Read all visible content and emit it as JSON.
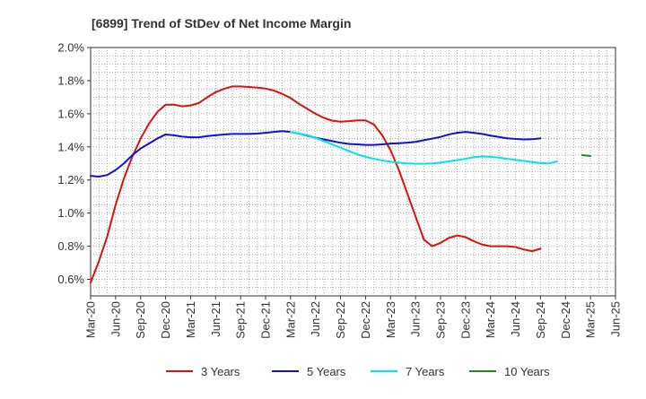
{
  "chart_data": {
    "type": "line",
    "title": "[6899]  Trend of StDev of Net Income Margin",
    "xlabel": "",
    "ylabel": "",
    "ylim": [
      0.5,
      2.0
    ],
    "y_ticks": [
      "2.0%",
      "1.8%",
      "1.6%",
      "1.4%",
      "1.2%",
      "1.0%",
      "0.8%",
      "0.6%"
    ],
    "y_tick_values": [
      2.0,
      1.8,
      1.6,
      1.4,
      1.2,
      1.0,
      0.8,
      0.6
    ],
    "x_tick_labels": [
      "Mar-20",
      "Jun-20",
      "Sep-20",
      "Dec-20",
      "Mar-21",
      "Jun-21",
      "Sep-21",
      "Dec-21",
      "Mar-22",
      "Jun-22",
      "Sep-22",
      "Dec-22",
      "Mar-23",
      "Jun-23",
      "Sep-23",
      "Dec-23",
      "Mar-24",
      "Jun-24",
      "Sep-24",
      "Dec-24",
      "Mar-25",
      "Jun-25"
    ],
    "x_unit": "month",
    "x_start": "2020-03",
    "grid": true,
    "legend_position": "bottom",
    "series": [
      {
        "name": "3 Years",
        "color": "#dd1111",
        "start": "2020-03",
        "values": [
          0.58,
          0.71,
          0.86,
          1.05,
          1.21,
          1.34,
          1.45,
          1.54,
          1.61,
          1.655,
          1.655,
          1.645,
          1.65,
          1.665,
          1.7,
          1.73,
          1.75,
          1.765,
          1.765,
          1.762,
          1.758,
          1.752,
          1.74,
          1.72,
          1.695,
          1.66,
          1.63,
          1.6,
          1.575,
          1.558,
          1.552,
          1.555,
          1.56,
          1.56,
          1.535,
          1.47,
          1.38,
          1.26,
          1.12,
          0.98,
          0.84,
          0.8,
          0.82,
          0.85,
          0.865,
          0.855,
          0.83,
          0.81,
          0.8,
          0.8,
          0.8,
          0.795,
          0.78,
          0.77,
          0.785
        ]
      },
      {
        "name": "5 Years",
        "color": "#1111cc",
        "start": "2020-03",
        "values": [
          1.225,
          1.22,
          1.23,
          1.26,
          1.3,
          1.35,
          1.39,
          1.42,
          1.45,
          1.475,
          1.47,
          1.462,
          1.458,
          1.458,
          1.465,
          1.47,
          1.475,
          1.478,
          1.478,
          1.478,
          1.48,
          1.485,
          1.49,
          1.495,
          1.49,
          1.48,
          1.468,
          1.455,
          1.445,
          1.435,
          1.425,
          1.418,
          1.415,
          1.412,
          1.412,
          1.415,
          1.42,
          1.422,
          1.425,
          1.43,
          1.44,
          1.45,
          1.46,
          1.475,
          1.485,
          1.49,
          1.485,
          1.478,
          1.468,
          1.46,
          1.452,
          1.448,
          1.445,
          1.446,
          1.452
        ]
      },
      {
        "name": "7 Years",
        "color": "#00e5e5",
        "start": "2022-03",
        "values": [
          1.49,
          1.48,
          1.47,
          1.455,
          1.435,
          1.415,
          1.395,
          1.375,
          1.355,
          1.34,
          1.328,
          1.318,
          1.31,
          1.305,
          1.3,
          1.298,
          1.298,
          1.3,
          1.305,
          1.312,
          1.32,
          1.328,
          1.338,
          1.342,
          1.34,
          1.335,
          1.328,
          1.322,
          1.315,
          1.308,
          1.302,
          1.3,
          1.312
        ]
      },
      {
        "name": "10 Years",
        "color": "#228822",
        "start": "2025-02",
        "values": [
          1.35,
          1.345
        ]
      }
    ]
  }
}
